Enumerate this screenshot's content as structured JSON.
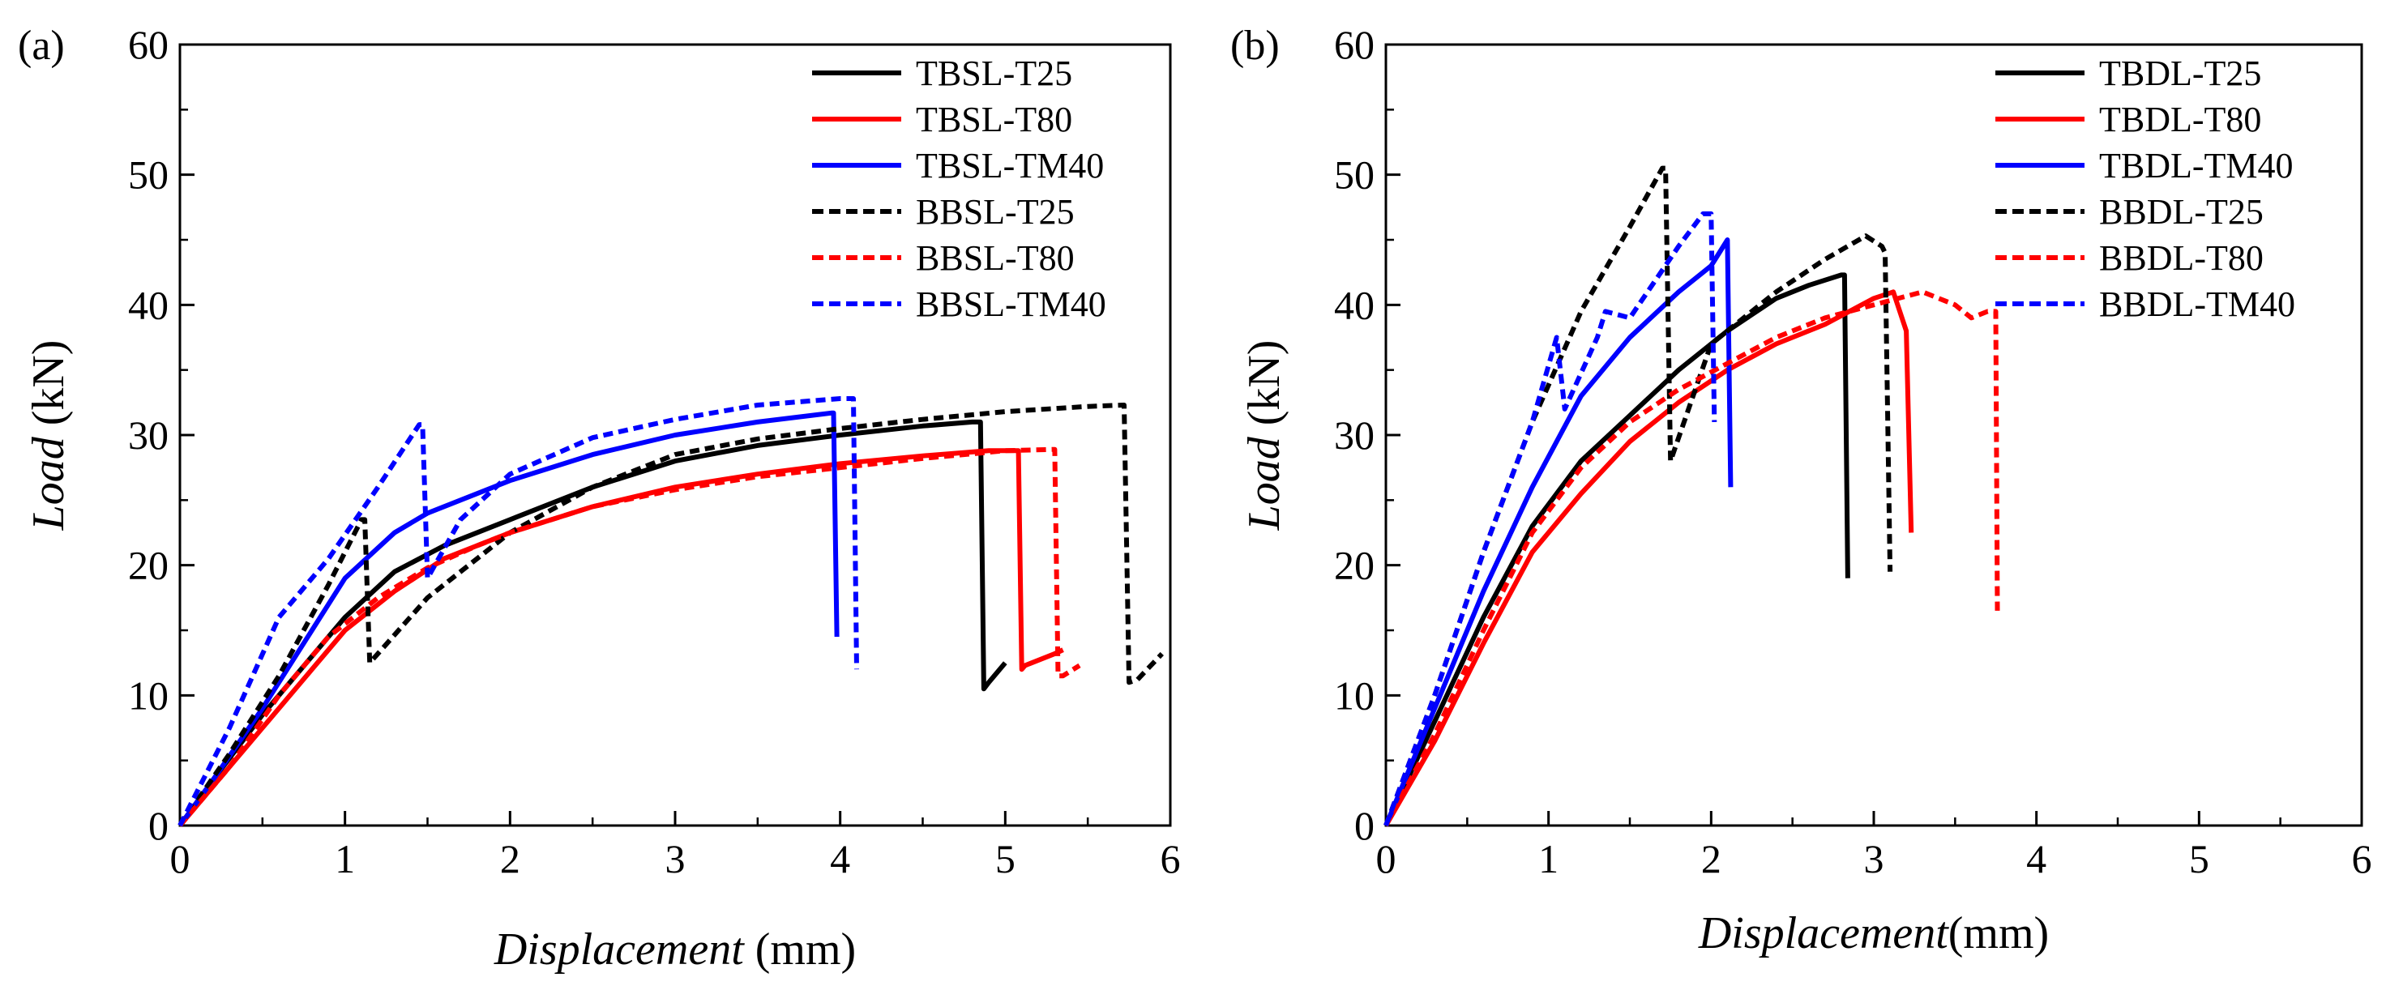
{
  "chart_data": [
    {
      "type": "line",
      "panel_label": "(a)",
      "title": "",
      "xlabel_italic": "Displacement",
      "xlabel_unit": " (mm)",
      "ylabel_italic": "Load",
      "ylabel_unit": " (kN)",
      "xlim": [
        0,
        6
      ],
      "ylim": [
        0,
        60
      ],
      "xticks": [
        0,
        1,
        2,
        3,
        4,
        5,
        6
      ],
      "yticks": [
        0,
        10,
        20,
        30,
        40,
        50,
        60
      ],
      "grid": false,
      "legend_position": "top-right",
      "series": [
        {
          "name": "TBSL-T25",
          "color": "#000000",
          "style": "solid",
          "x": [
            0,
            0.2,
            0.5,
            0.8,
            1.0,
            1.3,
            1.6,
            2.0,
            2.5,
            3.0,
            3.5,
            4.0,
            4.5,
            4.8,
            4.85,
            4.87,
            4.9,
            5.0
          ],
          "y": [
            0,
            3.5,
            8.5,
            13,
            16,
            19.5,
            21.5,
            23.5,
            26,
            28,
            29.2,
            30,
            30.7,
            31,
            31,
            10.5,
            11,
            12.5
          ]
        },
        {
          "name": "TBSL-T80",
          "color": "#ff0000",
          "style": "solid",
          "x": [
            0,
            0.2,
            0.5,
            0.8,
            1.0,
            1.3,
            1.6,
            2.0,
            2.5,
            3.0,
            3.5,
            4.0,
            4.5,
            4.9,
            5.08,
            5.1,
            5.12,
            5.3,
            5.35
          ],
          "y": [
            0,
            3,
            7.5,
            12,
            15,
            18,
            20.5,
            22.5,
            24.5,
            26,
            27,
            27.8,
            28.4,
            28.8,
            28.8,
            12,
            12.3,
            13.2,
            13.5
          ]
        },
        {
          "name": "TBSL-TM40",
          "color": "#0000ff",
          "style": "solid",
          "x": [
            0,
            0.2,
            0.5,
            0.8,
            1.0,
            1.3,
            1.5,
            2.0,
            2.5,
            3.0,
            3.5,
            3.95,
            3.96,
            3.98
          ],
          "y": [
            0,
            3.5,
            9,
            15,
            19,
            22.5,
            24,
            26.5,
            28.5,
            30,
            31,
            31.7,
            31.7,
            14.5
          ]
        },
        {
          "name": "BBSL-T25",
          "color": "#000000",
          "style": "dashed",
          "x": [
            0,
            0.3,
            0.6,
            0.9,
            1.1,
            1.12,
            1.15,
            1.5,
            2.0,
            2.5,
            3.0,
            3.5,
            4.0,
            4.5,
            5.0,
            5.5,
            5.72,
            5.75,
            5.8,
            5.95
          ],
          "y": [
            0,
            5.5,
            11.5,
            18.5,
            23.5,
            23.5,
            12.5,
            17.5,
            22.5,
            26,
            28.5,
            29.7,
            30.5,
            31.2,
            31.8,
            32.2,
            32.3,
            11,
            11.2,
            13.2
          ]
        },
        {
          "name": "BBSL-T80",
          "color": "#ff0000",
          "style": "dashed",
          "x": [
            0,
            0.3,
            0.6,
            0.9,
            1.2,
            1.5,
            1.8,
            2.0,
            2.5,
            3.0,
            3.5,
            4.0,
            4.5,
            5.0,
            5.3,
            5.32,
            5.35,
            5.45
          ],
          "y": [
            0,
            4.5,
            10,
            14.5,
            17.5,
            19.8,
            21.5,
            22.5,
            24.5,
            25.8,
            26.8,
            27.5,
            28.2,
            28.8,
            28.9,
            11.5,
            11.5,
            12.3
          ]
        },
        {
          "name": "BBSL-TM40",
          "color": "#0000ff",
          "style": "dashed",
          "x": [
            0,
            0.3,
            0.6,
            0.9,
            1.2,
            1.45,
            1.47,
            1.5,
            1.7,
            2.0,
            2.5,
            3.0,
            3.5,
            4.0,
            4.08,
            4.1
          ],
          "y": [
            0,
            7.5,
            16,
            20.5,
            26,
            30.8,
            30.8,
            19,
            23.5,
            27,
            29.8,
            31.2,
            32.3,
            32.8,
            32.8,
            12
          ]
        }
      ]
    },
    {
      "type": "line",
      "panel_label": "(b)",
      "title": "",
      "xlabel_italic": "Displacement",
      "xlabel_unit": "(mm)",
      "ylabel_italic": "Load",
      "ylabel_unit": " (kN)",
      "xlim": [
        0,
        6
      ],
      "ylim": [
        0,
        60
      ],
      "xticks": [
        0,
        1,
        2,
        3,
        4,
        5,
        6
      ],
      "yticks": [
        0,
        10,
        20,
        30,
        40,
        50,
        60
      ],
      "grid": false,
      "legend_position": "top-right",
      "series": [
        {
          "name": "TBDL-T25",
          "color": "#000000",
          "style": "solid",
          "x": [
            0,
            0.3,
            0.6,
            0.9,
            1.2,
            1.5,
            1.8,
            2.1,
            2.4,
            2.6,
            2.8,
            2.82,
            2.84
          ],
          "y": [
            0,
            8,
            16,
            23,
            28,
            31.5,
            35,
            38,
            40.5,
            41.5,
            42.3,
            42.3,
            19
          ]
        },
        {
          "name": "TBDL-T80",
          "color": "#ff0000",
          "style": "solid",
          "x": [
            0,
            0.3,
            0.6,
            0.9,
            1.2,
            1.5,
            1.8,
            2.1,
            2.4,
            2.7,
            3.0,
            3.12,
            3.2,
            3.23
          ],
          "y": [
            0,
            6.5,
            14,
            21,
            25.5,
            29.5,
            32.5,
            35,
            37,
            38.5,
            40.5,
            41,
            38,
            22.5
          ]
        },
        {
          "name": "TBDL-TM40",
          "color": "#0000ff",
          "style": "solid",
          "x": [
            0,
            0.3,
            0.6,
            0.9,
            1.2,
            1.5,
            1.8,
            2.0,
            2.1,
            2.12
          ],
          "y": [
            0,
            9,
            18,
            26,
            33,
            37.5,
            41,
            43,
            45,
            26
          ]
        },
        {
          "name": "BBDL-T25",
          "color": "#000000",
          "style": "dashed",
          "x": [
            0,
            0.3,
            0.6,
            0.9,
            1.2,
            1.5,
            1.7,
            1.72,
            1.75,
            2.0,
            2.4,
            2.7,
            2.95,
            3.05,
            3.07,
            3.1
          ],
          "y": [
            0,
            10,
            21,
            31,
            39.5,
            46,
            50.5,
            50.5,
            28,
            37,
            41,
            43.5,
            45.3,
            44.5,
            44,
            19.5
          ]
        },
        {
          "name": "BBDL-T80",
          "color": "#ff0000",
          "style": "dashed",
          "x": [
            0,
            0.3,
            0.6,
            0.9,
            1.2,
            1.5,
            1.8,
            2.1,
            2.4,
            2.7,
            3.0,
            3.3,
            3.5,
            3.6,
            3.7,
            3.75,
            3.76
          ],
          "y": [
            0,
            7,
            15,
            22.5,
            27.5,
            31,
            33.5,
            35.5,
            37.5,
            39,
            40,
            41,
            40,
            39,
            39.5,
            39.5,
            16.5
          ]
        },
        {
          "name": "BBDL-TM40",
          "color": "#0000ff",
          "style": "dashed",
          "x": [
            0,
            0.3,
            0.6,
            0.9,
            1.05,
            1.1,
            1.3,
            1.35,
            1.5,
            1.8,
            1.95,
            2.0,
            2.02
          ],
          "y": [
            0,
            10,
            21,
            31,
            37.5,
            32,
            37.5,
            39.5,
            39,
            44.5,
            47,
            47,
            31
          ]
        }
      ]
    }
  ]
}
